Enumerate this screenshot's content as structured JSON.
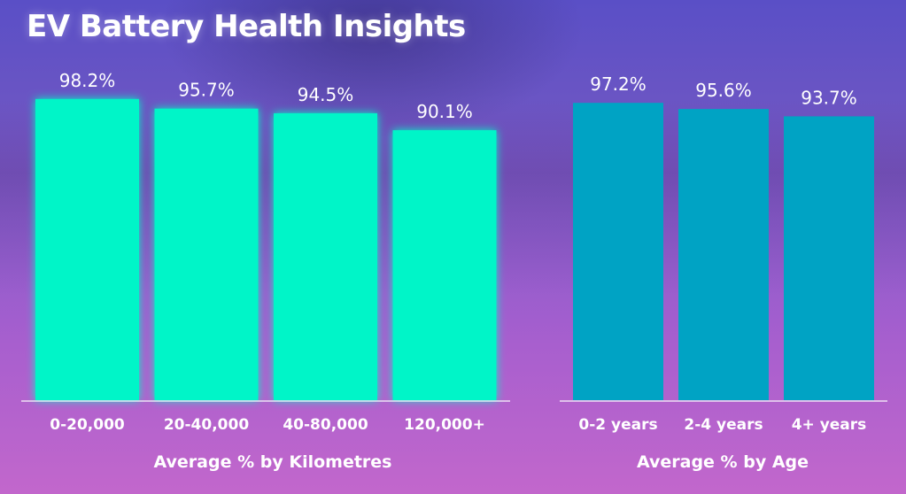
{
  "title": "EV Battery Health Insights",
  "colors": {
    "km_bars": "#00f5c8",
    "age_bars": "#00a3c4",
    "text": "#ffffff"
  },
  "chart_data": [
    {
      "type": "bar",
      "categories": [
        "0-20,000",
        "20-40,000",
        "40-80,000",
        "120,000+"
      ],
      "values": [
        98.2,
        95.7,
        94.5,
        90.1
      ],
      "value_labels": [
        "98.2%",
        "95.7%",
        "94.5%",
        "90.1%"
      ],
      "xlabel": "Average % by Kilometres",
      "ylabel": "",
      "grid": false
    },
    {
      "type": "bar",
      "categories": [
        "0-2 years",
        "2-4 years",
        "4+ years"
      ],
      "values": [
        97.2,
        95.6,
        93.7
      ],
      "value_labels": [
        "97.2%",
        "95.6%",
        "93.7%"
      ],
      "xlabel": "Average % by Age",
      "ylabel": "",
      "grid": false
    }
  ]
}
